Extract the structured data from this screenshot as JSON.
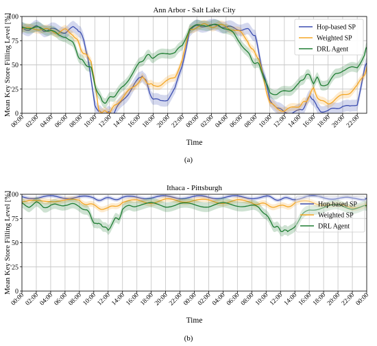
{
  "figure": {
    "captions": [
      "(a)",
      "(b)"
    ]
  },
  "chart_data": [
    {
      "type": "line",
      "title": "Ann Arbor - Salt Lake City",
      "xlabel": "Time",
      "ylabel": "Mean Key Store Filling Level [%]",
      "ylim": [
        0,
        100
      ],
      "yticks": [
        0,
        25,
        50,
        75,
        100
      ],
      "xticks": [
        "00:00",
        "02:00",
        "04:00",
        "06:00",
        "08:00",
        "10:00",
        "12:00",
        "14:00",
        "16:00",
        "18:00",
        "20:00",
        "22:00",
        "00:00",
        "02:00",
        "04:00",
        "06:00",
        "08:00",
        "10:00",
        "12:00",
        "14:00",
        "16:00",
        "18:00",
        "20:00",
        "22:00"
      ],
      "xlim_hours": [
        0,
        47.3
      ],
      "grid": true,
      "legend": "upper right",
      "series": [
        {
          "name": "Hop-based SP",
          "color": "#3a4cb0",
          "band": 6,
          "x": [
            0,
            1,
            2,
            3,
            4,
            5,
            6,
            7,
            7.6,
            8,
            8.5,
            9,
            9.5,
            10,
            10.5,
            11,
            11.5,
            12,
            12.5,
            13,
            14,
            15,
            16,
            16.5,
            17,
            17.5,
            18,
            19,
            20,
            21,
            22,
            23,
            24,
            25,
            26,
            27,
            28,
            29,
            30,
            31,
            31.5,
            32,
            32.5,
            33,
            33.5,
            34,
            35,
            36,
            37,
            38,
            38.5,
            39,
            39.5,
            40,
            40.5,
            41,
            42,
            43,
            44,
            45,
            46,
            47,
            47.3
          ],
          "y": [
            88,
            87,
            89,
            86,
            87,
            85,
            84,
            88,
            88,
            83,
            75,
            60,
            33,
            10,
            1,
            0,
            0,
            0,
            0,
            5,
            15,
            25,
            35,
            40,
            33,
            22,
            15,
            12,
            15,
            25,
            50,
            85,
            90,
            91,
            90,
            91,
            89,
            88,
            87,
            86,
            84,
            80,
            62,
            45,
            30,
            15,
            5,
            1,
            1,
            2,
            5,
            10,
            18,
            15,
            5,
            3,
            2,
            5,
            8,
            6,
            10,
            45,
            52
          ]
        },
        {
          "name": "Weighted SP",
          "color": "#f5a623",
          "band": 4,
          "x": [
            0,
            1,
            2,
            3,
            4,
            5,
            6,
            7,
            7.6,
            8,
            8.5,
            9,
            9.5,
            10,
            10.5,
            11,
            11.5,
            12,
            12.5,
            13,
            14,
            15,
            16,
            16.5,
            17,
            17.5,
            18,
            19,
            20,
            21,
            22,
            23,
            24,
            25,
            26,
            27,
            28,
            29,
            30,
            31,
            31.5,
            32,
            32.5,
            33,
            33.5,
            34,
            35,
            36,
            37,
            38,
            38.5,
            39,
            39.5,
            40,
            40.5,
            41,
            42,
            43,
            44,
            45,
            46,
            47,
            47.3
          ],
          "y": [
            88,
            87,
            88,
            86,
            86,
            83,
            86,
            82,
            75,
            68,
            62,
            58,
            55,
            30,
            5,
            1,
            1,
            2,
            5,
            10,
            18,
            25,
            33,
            36,
            34,
            30,
            28,
            30,
            33,
            38,
            55,
            86,
            90,
            91,
            90,
            91,
            89,
            87,
            83,
            75,
            66,
            62,
            57,
            40,
            25,
            10,
            5,
            3,
            5,
            8,
            10,
            12,
            20,
            25,
            18,
            12,
            10,
            15,
            18,
            22,
            28,
            40,
            48
          ]
        },
        {
          "name": "DRL Agent",
          "color": "#1e7d32",
          "band": 5,
          "x": [
            0,
            1,
            2,
            3,
            4,
            5,
            6,
            7,
            7.6,
            8,
            8.5,
            9,
            9.5,
            10,
            10.5,
            11,
            11.5,
            12,
            12.5,
            13,
            14,
            15,
            16,
            16.5,
            17,
            17.5,
            18,
            19,
            20,
            21,
            22,
            23,
            24,
            25,
            26,
            27,
            28,
            29,
            30,
            31,
            31.5,
            32,
            32.5,
            33,
            33.5,
            34,
            35,
            36,
            37,
            38,
            38.5,
            39,
            39.5,
            40,
            40.5,
            41,
            42,
            43,
            44,
            45,
            46,
            47,
            47.3
          ],
          "y": [
            88,
            89,
            88,
            87,
            86,
            80,
            80,
            72,
            62,
            56,
            52,
            50,
            46,
            30,
            20,
            12,
            12,
            15,
            18,
            20,
            28,
            40,
            50,
            55,
            58,
            60,
            58,
            60,
            63,
            62,
            70,
            88,
            90,
            92,
            90,
            91,
            88,
            82,
            73,
            62,
            56,
            52,
            50,
            42,
            30,
            22,
            20,
            22,
            25,
            30,
            35,
            40,
            38,
            32,
            36,
            30,
            30,
            40,
            45,
            46,
            48,
            60,
            68
          ]
        }
      ]
    },
    {
      "type": "line",
      "title": "Ithaca - Pittsburgh",
      "xlabel": "Time",
      "ylabel": "Mean Key Store Filling Level [%]",
      "ylim": [
        0,
        100
      ],
      "yticks": [
        0,
        25,
        50,
        75,
        100
      ],
      "xticks": [
        "00:00",
        "02:00",
        "04:00",
        "06:00",
        "08:00",
        "10:00",
        "12:00",
        "14:00",
        "16:00",
        "18:00",
        "20:00",
        "22:00",
        "00:00",
        "02:00",
        "04:00",
        "06:00",
        "08:00",
        "10:00",
        "12:00",
        "14:00",
        "16:00",
        "18:00",
        "20:00",
        "22:00",
        "00:00"
      ],
      "xlim_hours": [
        0,
        48
      ],
      "grid": true,
      "legend": "right",
      "series": [
        {
          "name": "Hop-based SP",
          "color": "#3a4cb0",
          "band": 2,
          "x": [
            0,
            2,
            4,
            6,
            8,
            10,
            11,
            12,
            13,
            14,
            16,
            18,
            20,
            22,
            24,
            26,
            28,
            30,
            32,
            34,
            35,
            36,
            37,
            38,
            40,
            42,
            44,
            46,
            48
          ],
          "y": [
            97,
            97,
            97,
            97,
            97,
            96,
            95,
            95,
            96,
            96,
            97,
            97,
            97,
            97,
            97,
            97,
            97,
            97,
            97,
            97,
            96,
            95,
            95,
            96,
            97,
            97,
            96,
            95,
            96
          ]
        },
        {
          "name": "Weighted SP",
          "color": "#f5a623",
          "band": 3,
          "x": [
            0,
            2,
            4,
            6,
            8,
            9,
            10,
            11,
            12,
            13,
            14,
            16,
            18,
            20,
            22,
            24,
            26,
            28,
            30,
            32,
            33,
            34,
            35,
            36,
            37,
            38,
            40,
            42,
            44,
            46,
            48
          ],
          "y": [
            93,
            92,
            94,
            93,
            94,
            90,
            88,
            86,
            85,
            88,
            92,
            93,
            92,
            94,
            93,
            94,
            93,
            92,
            93,
            92,
            90,
            89,
            88,
            87,
            88,
            91,
            92,
            90,
            88,
            87,
            89
          ]
        },
        {
          "name": "DRL Agent",
          "color": "#1e7d32",
          "band": 5,
          "x": [
            0,
            1,
            2,
            3,
            4,
            5,
            6,
            7,
            8,
            9,
            9.5,
            10,
            10.5,
            11,
            11.5,
            12,
            12.5,
            13,
            13.5,
            14,
            15,
            16,
            18,
            20,
            22,
            24,
            26,
            28,
            30,
            32,
            33,
            34,
            34.5,
            35,
            35.5,
            36,
            36.5,
            37,
            38,
            39,
            40,
            42,
            44,
            46,
            48
          ],
          "y": [
            90,
            88,
            91,
            87,
            89,
            88,
            90,
            89,
            88,
            84,
            78,
            72,
            68,
            70,
            66,
            62,
            70,
            74,
            75,
            84,
            88,
            89,
            90,
            88,
            90,
            89,
            88,
            90,
            89,
            88,
            86,
            80,
            72,
            68,
            66,
            62,
            64,
            60,
            68,
            78,
            84,
            87,
            88,
            86,
            88
          ]
        }
      ]
    }
  ]
}
